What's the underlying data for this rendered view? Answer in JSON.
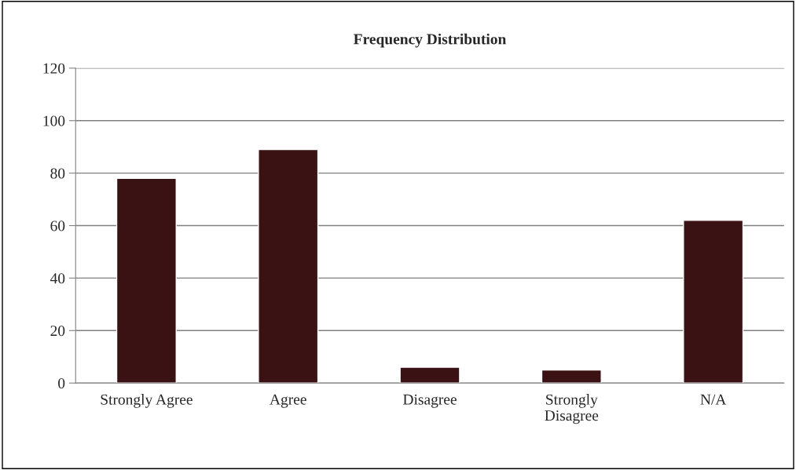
{
  "chart_data": {
    "type": "bar",
    "title": "Frequency Distribution",
    "categories": [
      "Strongly Agree",
      "Agree",
      "Disagree",
      "Strongly\nDisagree",
      "N/A"
    ],
    "values": [
      78,
      89,
      6,
      5,
      62
    ],
    "color": "#3b1214",
    "ylim": [
      0,
      120
    ],
    "yticks": [
      0,
      20,
      40,
      60,
      80,
      100,
      120
    ],
    "grid": "y",
    "legend": false
  }
}
